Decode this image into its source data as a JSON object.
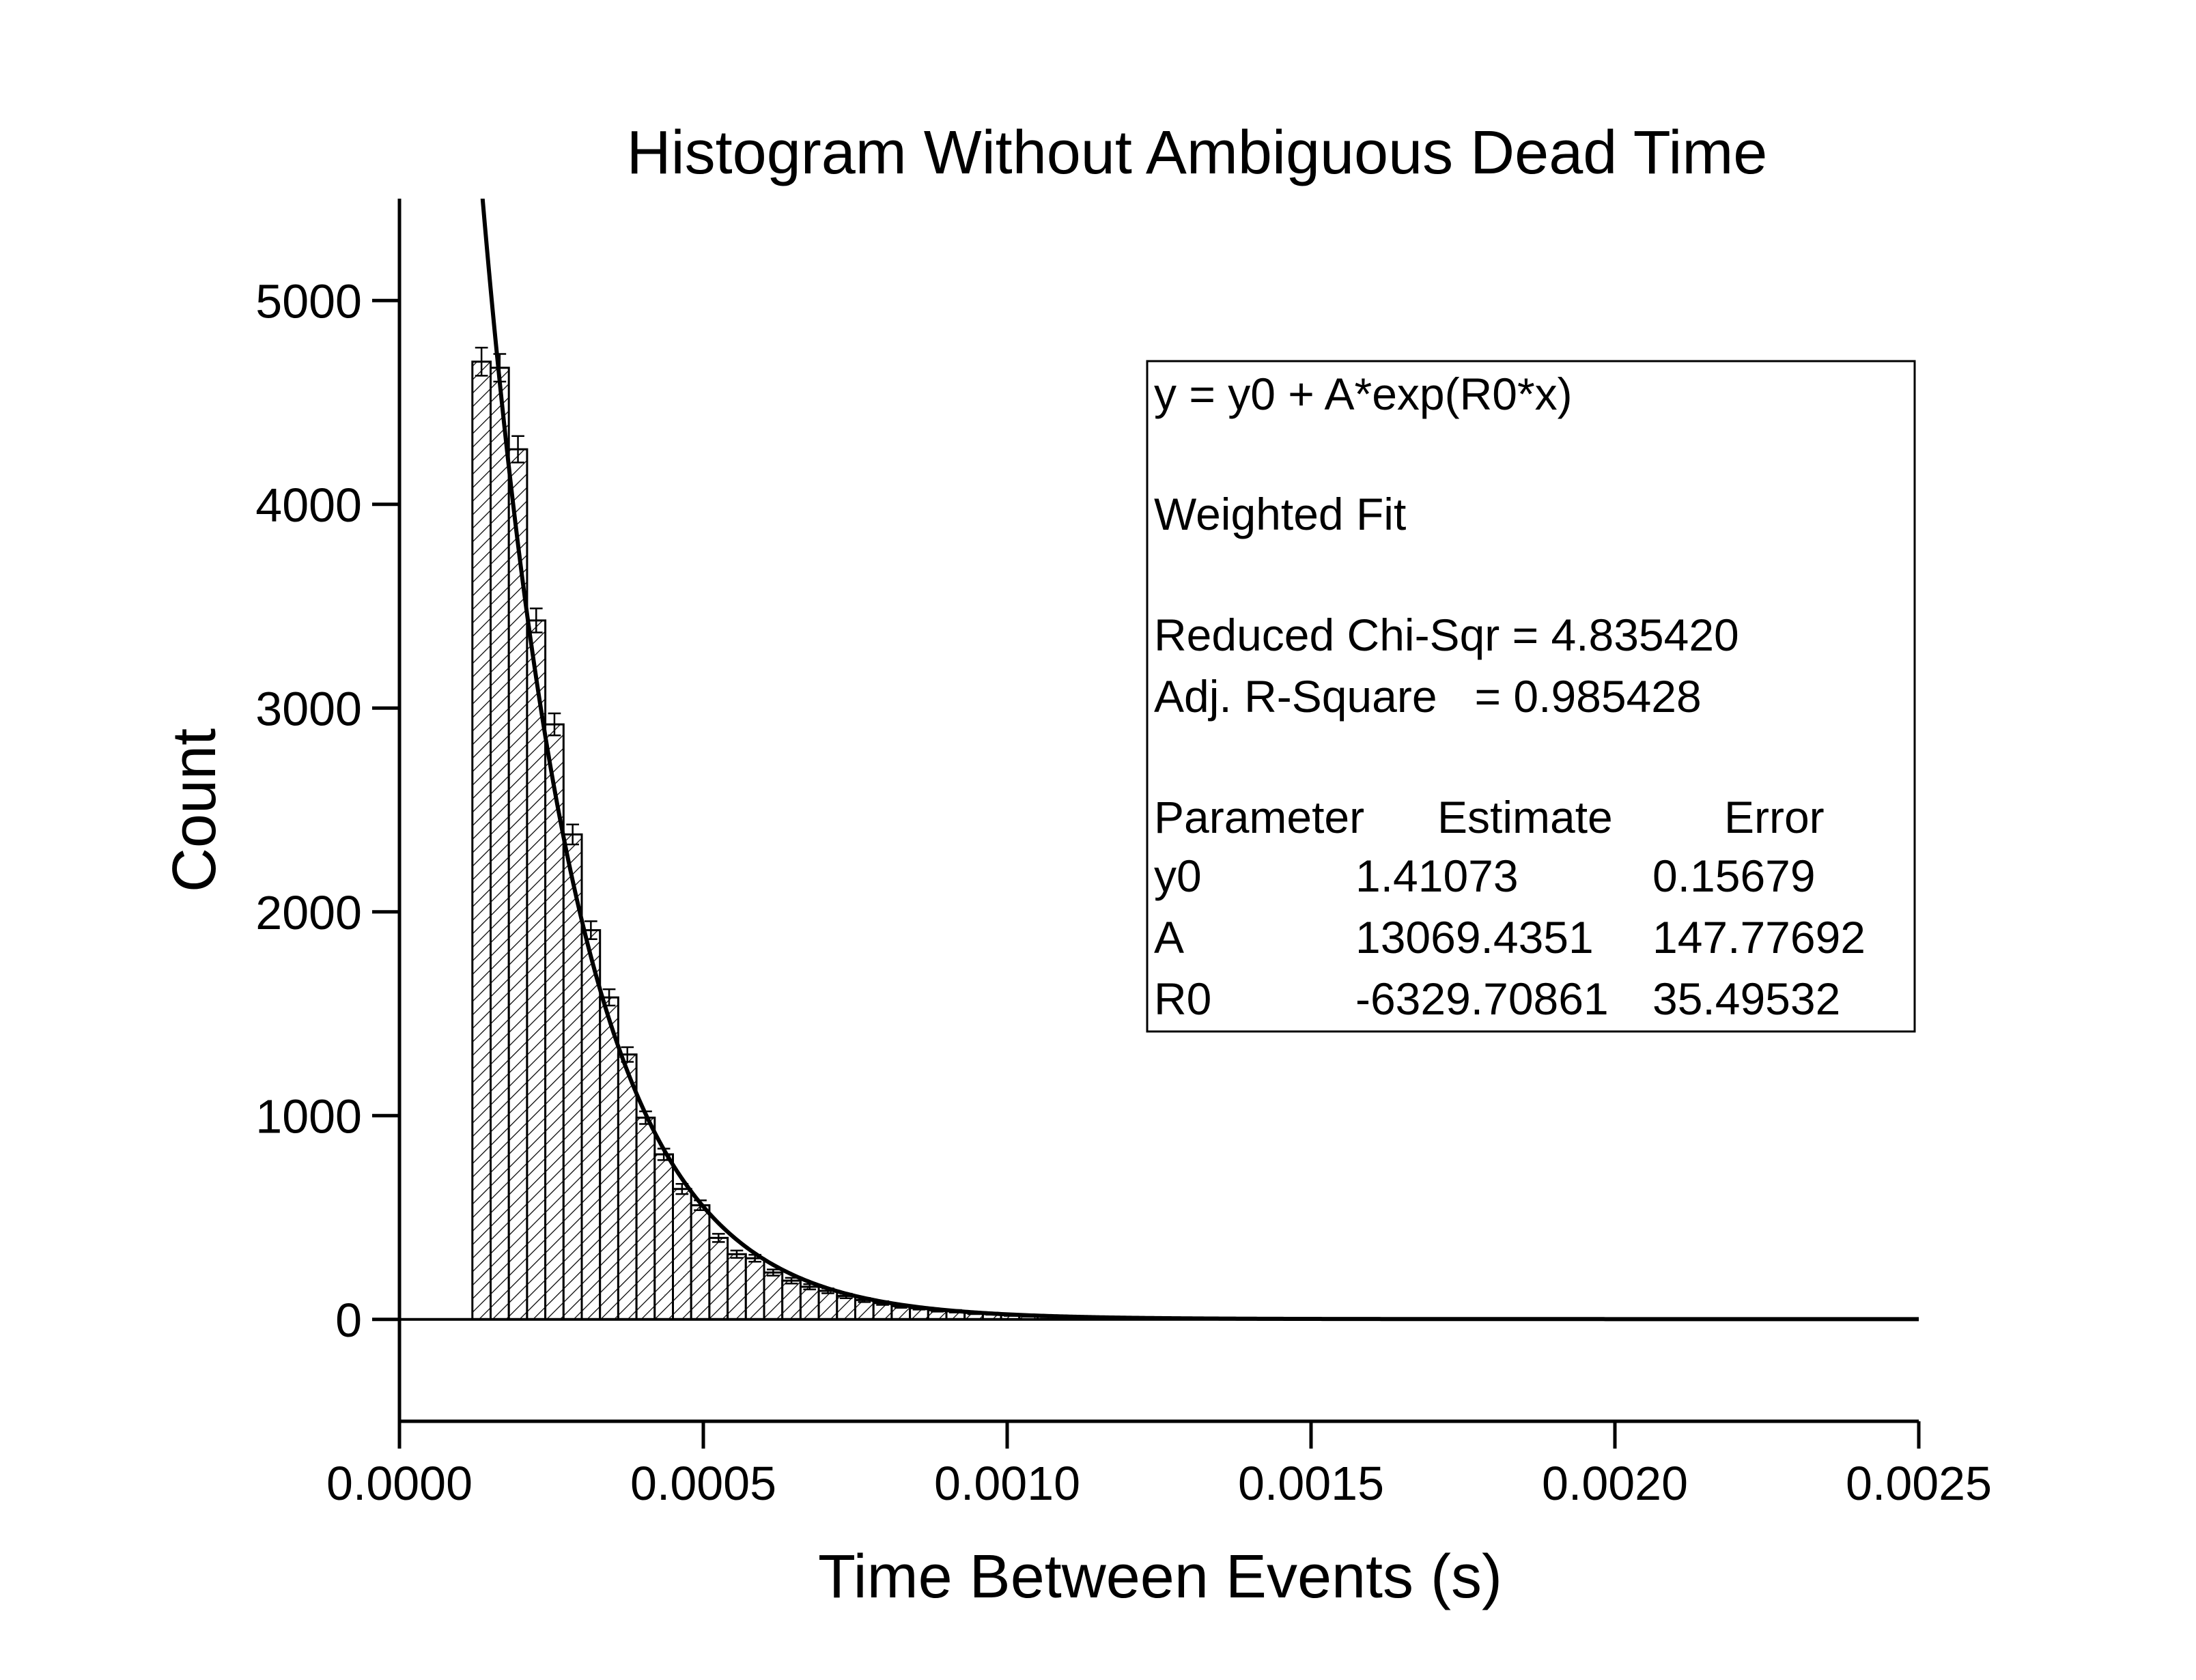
{
  "chart_data": {
    "type": "histogram",
    "title": "Histogram Without Ambiguous Dead Time",
    "x_label": "Time Between Events (s)",
    "y_label": "Count",
    "bins": [
      0.00012,
      0.00015,
      0.00018,
      0.00021,
      0.00024,
      0.00027,
      0.0003,
      0.00033,
      0.00036,
      0.00039,
      0.00042,
      0.00045,
      0.00048,
      0.00051,
      0.00054,
      0.00057,
      0.0006,
      0.00063,
      0.00066,
      0.00069,
      0.00072,
      0.00075,
      0.00078,
      0.00081,
      0.00084,
      0.00087,
      0.0009,
      0.00093,
      0.00096,
      0.00099,
      0.00102,
      0.00105,
      0.00108,
      0.00111,
      0.00114,
      0.00117,
      0.0012,
      0.00123,
      0.00126,
      0.00129,
      0.00132,
      0.00135,
      0.00138,
      0.00141,
      0.00144,
      0.00147
    ],
    "values": [
      4700,
      4670,
      4270,
      3430,
      2920,
      2380,
      1910,
      1580,
      1300,
      990,
      810,
      640,
      560,
      400,
      320,
      300,
      230,
      190,
      160,
      140,
      115,
      95,
      80,
      65,
      55,
      45,
      40,
      32,
      28,
      22,
      18,
      15,
      12,
      10,
      8,
      7,
      6,
      5,
      4,
      3,
      3,
      2,
      2,
      2,
      1
    ],
    "errors": [
      69,
      68,
      65,
      59,
      54,
      49,
      44,
      40,
      36,
      31,
      28,
      25,
      24,
      20,
      18,
      17,
      15,
      14,
      13,
      12,
      11,
      10,
      9,
      8,
      7,
      7,
      6,
      6,
      5,
      5,
      4,
      4,
      3,
      3,
      3,
      3,
      2,
      2,
      2,
      2,
      2,
      1,
      1,
      1,
      1
    ],
    "color": "#000000",
    "xlim": [
      0,
      0.0025
    ],
    "ylim": [
      -500,
      5500
    ],
    "xticks": [
      {
        "value": 0,
        "label": "0.0000"
      },
      {
        "value": 0.0005,
        "label": "0.0005"
      },
      {
        "value": 0.001,
        "label": "0.0010"
      },
      {
        "value": 0.0015,
        "label": "0.0015"
      },
      {
        "value": 0.002,
        "label": "0.0020"
      },
      {
        "value": 0.0025,
        "label": "0.0025"
      }
    ],
    "yticks": [
      0,
      1000,
      2000,
      3000,
      4000,
      5000
    ],
    "fit": {
      "equation": "y = y0 + A*exp(R0*x)",
      "method": "Weighted Fit",
      "stats": [
        "Reduced Chi-Sqr = 4.835420",
        "Adj. R-Square   = 0.985428"
      ],
      "header": [
        "Parameter",
        "Estimate",
        "Error"
      ],
      "rows": [
        [
          "y0",
          1.41073,
          0.15679
        ],
        [
          "A",
          13069.4351,
          147.77692
        ],
        [
          "R0",
          -6329.70861,
          35.49532
        ]
      ]
    }
  }
}
